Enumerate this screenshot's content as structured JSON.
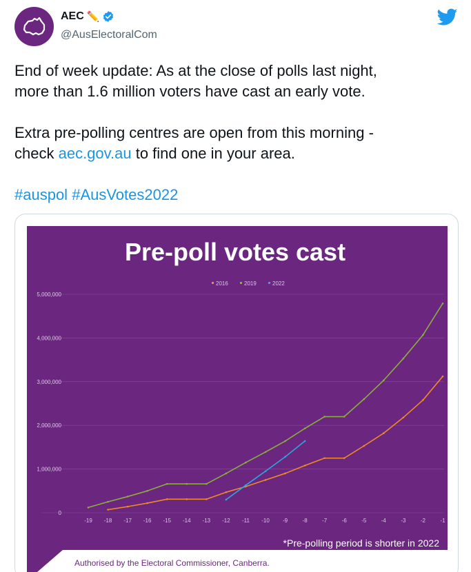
{
  "tweet": {
    "display_name": "AEC",
    "pencil": "✏️",
    "handle": "@AusElectoralCom",
    "line1": "End of week update: As at the close of polls last night,",
    "line2": "more than 1.6 million voters have cast an early vote.",
    "line3": "Extra pre-polling centres are open from this morning -",
    "line4_prefix": "check ",
    "link": "aec.gov.au",
    "line4_suffix": " to find one in your area.",
    "hashtag1": "#auspol",
    "hashtag2": "#AusVotes2022"
  },
  "colors": {
    "background": "#6b2680",
    "s2016": "#f08a24",
    "s2019": "#8ab03c",
    "s2022": "#29a8e0",
    "link": "#1b95e0"
  },
  "chart_data": {
    "type": "line",
    "title": "Pre-poll votes cast",
    "x": [
      -19,
      -18,
      -17,
      -16,
      -15,
      -14,
      -13,
      -12,
      -11,
      -10,
      -9,
      -8,
      -7,
      -6,
      -5,
      -4,
      -3,
      -2,
      -1
    ],
    "x_tick_labels": [
      "-19",
      "-18",
      "-17",
      "-16",
      "-15",
      "-14",
      "-13",
      "-12",
      "-11",
      "-10",
      "-9",
      "-8",
      "-7",
      "-6",
      "-5",
      "-4",
      "-3",
      "-2",
      "-1"
    ],
    "y_tick_labels": [
      "0",
      "1,000,000",
      "2,000,000",
      "3,000,000",
      "4,000,000",
      "5,000,000"
    ],
    "ylim": [
      0,
      5000000
    ],
    "legend_position": "top-center",
    "grid": true,
    "series": [
      {
        "name": "2016",
        "x": [
          -18,
          -17,
          -16,
          -15,
          -14,
          -13,
          -12,
          -11,
          -10,
          -9,
          -8,
          -7,
          -6,
          -5,
          -4,
          -3,
          -2,
          -1
        ],
        "values": [
          70000,
          140000,
          220000,
          310000,
          310000,
          310000,
          470000,
          600000,
          750000,
          900000,
          1080000,
          1250000,
          1250000,
          1530000,
          1820000,
          2180000,
          2580000,
          3120000
        ]
      },
      {
        "name": "2019",
        "x": [
          -19,
          -18,
          -17,
          -16,
          -15,
          -14,
          -13,
          -12,
          -11,
          -10,
          -9,
          -8,
          -7,
          -6,
          -5,
          -4,
          -3,
          -2,
          -1
        ],
        "values": [
          120000,
          250000,
          370000,
          500000,
          660000,
          660000,
          660000,
          900000,
          1150000,
          1390000,
          1640000,
          1930000,
          2200000,
          2200000,
          2600000,
          3030000,
          3530000,
          4070000,
          4790000
        ]
      },
      {
        "name": "2022",
        "x": [
          -12,
          -11,
          -10,
          -9,
          -8
        ],
        "values": [
          300000,
          630000,
          950000,
          1280000,
          1640000
        ]
      }
    ],
    "annotation": "*Pre-polling period is shorter in 2022",
    "footer": "Authorised by the Electoral Commissioner, Canberra."
  }
}
